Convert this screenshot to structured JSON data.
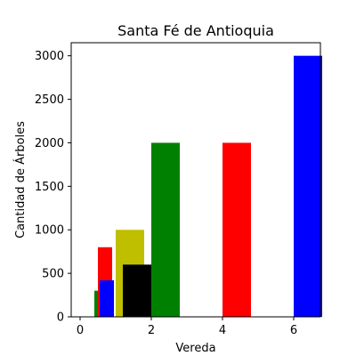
{
  "chart_data": {
    "type": "bar",
    "title": "Santa Fé de Antioquia",
    "xlabel": "Vereda",
    "ylabel": "Cantidad de Árboles",
    "xlim": [
      -0.25,
      6.75
    ],
    "ylim": [
      0,
      3150
    ],
    "x_ticks": [
      0,
      2,
      4,
      6
    ],
    "y_ticks": [
      0,
      500,
      1000,
      1500,
      2000,
      2500,
      3000
    ],
    "grid": false,
    "bars": [
      {
        "x": 0.4,
        "width": 0.4,
        "value": 300,
        "color": "#008000"
      },
      {
        "x": 0.5,
        "width": 0.4,
        "value": 800,
        "color": "#ff0000"
      },
      {
        "x": 0.55,
        "width": 0.4,
        "value": 420,
        "color": "#0000ff"
      },
      {
        "x": 1.0,
        "width": 0.8,
        "value": 1000,
        "color": "#bfbf00"
      },
      {
        "x": 1.2,
        "width": 0.8,
        "value": 600,
        "color": "#000000"
      },
      {
        "x": 2.0,
        "width": 0.8,
        "value": 2000,
        "color": "#008000"
      },
      {
        "x": 4.0,
        "width": 0.8,
        "value": 2000,
        "color": "#ff0000"
      },
      {
        "x": 6.0,
        "width": 0.8,
        "value": 3000,
        "color": "#0000ff"
      }
    ]
  }
}
